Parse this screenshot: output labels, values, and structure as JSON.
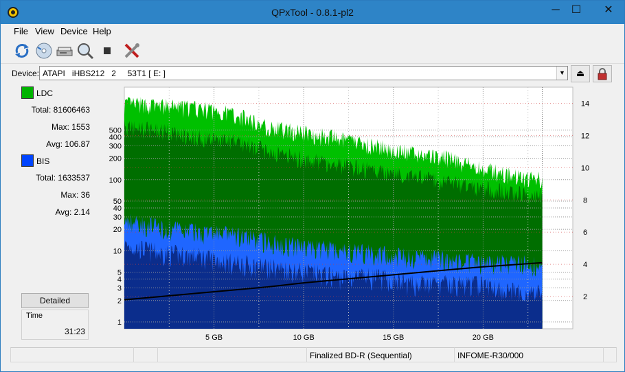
{
  "window": {
    "title": "QPxTool - 0.8.1-pl2",
    "minimize": "─",
    "maximize": "☐",
    "close": "✕"
  },
  "menu": [
    "File",
    "View",
    "Device",
    "Help"
  ],
  "toolbar": [
    "refresh-icon",
    "disc-info-icon",
    "drive-icon",
    "scan-icon",
    "stop-icon",
    "settings-tools-icon"
  ],
  "device": {
    "label": "Device:",
    "value": "ATAPI   iHBS212   2     53T1 [ E: ]"
  },
  "stats": {
    "ldc": {
      "name": "LDC",
      "color": "#00b400",
      "total": "Total: 81606463",
      "max": "Max: 1553",
      "avg": "Avg: 106.87"
    },
    "bis": {
      "name": "BIS",
      "color": "#0044ff",
      "total": "Total: 1633537",
      "max": "Max: 36",
      "avg": "Avg: 2.14"
    }
  },
  "detailed_button": "Detailed",
  "time": {
    "label": "Time",
    "value": "31:23"
  },
  "status": {
    "media": "Finalized BD-R (Sequential)",
    "media_id": "INFOME-R30/000"
  },
  "chart_data": {
    "type": "area",
    "x_unit": "GB",
    "xlim": [
      0,
      25
    ],
    "x_ticks": [
      5,
      10,
      15,
      20
    ],
    "x_tick_labels": [
      "5 GB",
      "10 GB",
      "15 GB",
      "20 GB"
    ],
    "y_left": {
      "scale": "log",
      "ylim": [
        0.8,
        2000
      ],
      "ticks": [
        1,
        2,
        3,
        4,
        5,
        10,
        20,
        30,
        40,
        50,
        100,
        200,
        300,
        400,
        500
      ]
    },
    "y_right": {
      "ylim": [
        0,
        15
      ],
      "ticks": [
        2,
        4,
        6,
        8,
        10,
        12,
        14
      ]
    },
    "data_end_gb": 23.3,
    "grid": true,
    "series": [
      {
        "name": "LDC",
        "x": [
          0,
          2,
          4,
          6,
          8,
          10,
          12,
          14,
          16,
          18,
          20,
          22,
          23.3
        ],
        "peak": [
          1500,
          1400,
          1300,
          1100,
          700,
          600,
          480,
          380,
          300,
          260,
          180,
          140,
          130
        ],
        "mean": [
          650,
          580,
          470,
          420,
          300,
          230,
          190,
          160,
          130,
          110,
          90,
          75,
          70
        ]
      },
      {
        "name": "BIS",
        "x": [
          0,
          2,
          4,
          6,
          8,
          10,
          12,
          14,
          16,
          18,
          20,
          22,
          23.3
        ],
        "peak": [
          36,
          28,
          25,
          22,
          18,
          15,
          14,
          12,
          11,
          10,
          9,
          9,
          8
        ],
        "mean": [
          14,
          11,
          10,
          8,
          7,
          6,
          5,
          5,
          4,
          4,
          4,
          3,
          3
        ]
      },
      {
        "name": "Speed",
        "axis": "right",
        "x": [
          0,
          2,
          4,
          6,
          8,
          10,
          12,
          14,
          16,
          18,
          20,
          22,
          23.3
        ],
        "values": [
          1.8,
          2.0,
          2.2,
          2.4,
          2.6,
          2.85,
          3.05,
          3.25,
          3.45,
          3.65,
          3.85,
          4.0,
          4.1
        ]
      }
    ]
  }
}
